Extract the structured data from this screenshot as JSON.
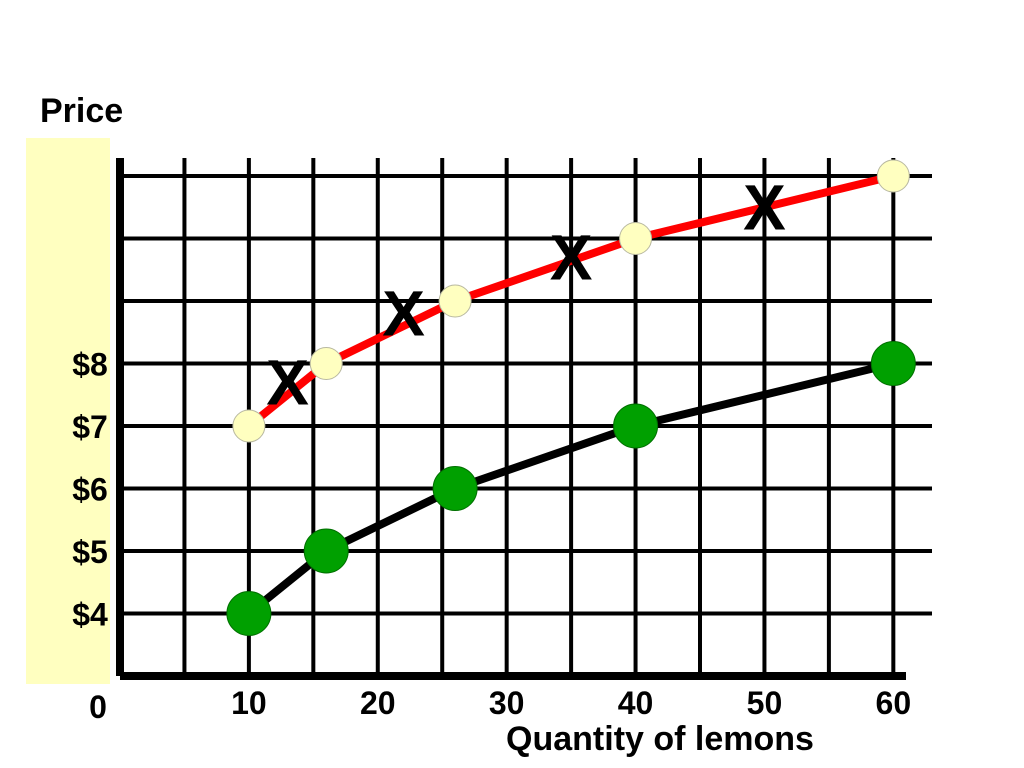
{
  "chart_data": {
    "type": "line",
    "ylabel": "Price",
    "xlabel": "Quantity of lemons",
    "origin_label": "0",
    "x_ticks": [
      {
        "value": 10,
        "label": "10"
      },
      {
        "value": 20,
        "label": "20"
      },
      {
        "value": 30,
        "label": "30"
      },
      {
        "value": 40,
        "label": "40"
      },
      {
        "value": 50,
        "label": "50"
      },
      {
        "value": 60,
        "label": "60"
      }
    ],
    "y_ticks": [
      {
        "value": 4,
        "label": "$4"
      },
      {
        "value": 5,
        "label": "$5"
      },
      {
        "value": 6,
        "label": "$6"
      },
      {
        "value": 7,
        "label": "$7"
      },
      {
        "value": 8,
        "label": "$8"
      }
    ],
    "xlim": [
      0,
      63
    ],
    "ylim": [
      3,
      11
    ],
    "grid": true,
    "series": [
      {
        "color": "#ff0000",
        "marker_color": "#ffffc0",
        "points": [
          {
            "x": 10,
            "y": 7
          },
          {
            "x": 16,
            "y": 8
          },
          {
            "x": 26,
            "y": 9
          },
          {
            "x": 40,
            "y": 10
          },
          {
            "x": 60,
            "y": 11
          }
        ]
      },
      {
        "color": "#000000",
        "marker_color": "#00a000",
        "points": [
          {
            "x": 10,
            "y": 4
          },
          {
            "x": 16,
            "y": 5
          },
          {
            "x": 26,
            "y": 6
          },
          {
            "x": 40,
            "y": 7
          },
          {
            "x": 60,
            "y": 8
          }
        ]
      }
    ],
    "annotations": [
      {
        "text": "X",
        "x": 13,
        "y": 7.7
      },
      {
        "text": "X",
        "x": 22,
        "y": 8.8
      },
      {
        "text": "X",
        "x": 35,
        "y": 9.7
      },
      {
        "text": "X",
        "x": 50,
        "y": 10.5
      }
    ]
  }
}
